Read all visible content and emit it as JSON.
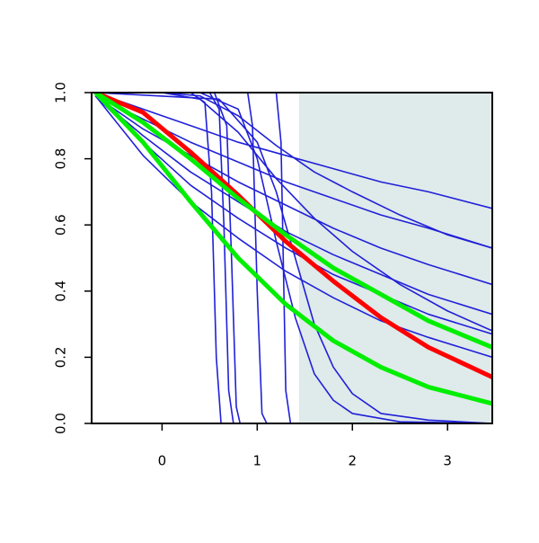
{
  "chart_data": {
    "type": "line",
    "xlim": [
      -0.74,
      3.47
    ],
    "ylim": [
      0,
      1
    ],
    "xticks": [
      0,
      1,
      2,
      3
    ],
    "yticks": [
      {
        "value": 0,
        "label": "0.0"
      },
      {
        "value": 0.2,
        "label": "0.2"
      },
      {
        "value": 0.4,
        "label": "0.4"
      },
      {
        "value": 0.6,
        "label": "0.6"
      },
      {
        "value": 0.8,
        "label": "0.8"
      },
      {
        "value": 1,
        "label": "1.0"
      }
    ],
    "shaded_range": [
      1.44,
      3.47
    ],
    "shade_color": "#dfeaea",
    "line_color": "#2020d8",
    "series": [
      {
        "x": [
          -0.7,
          -0.2,
          0.3,
          0.8,
          1.3,
          1.8,
          2.3,
          2.8,
          3.47
        ],
        "values": [
          1.0,
          0.95,
          0.9,
          0.85,
          0.81,
          0.77,
          0.73,
          0.7,
          0.65
        ]
      },
      {
        "x": [
          -0.7,
          -0.2,
          0.3,
          0.8,
          1.3,
          1.8,
          2.3,
          2.8,
          3.47
        ],
        "values": [
          0.99,
          0.92,
          0.85,
          0.79,
          0.73,
          0.68,
          0.63,
          0.59,
          0.53
        ]
      },
      {
        "x": [
          -0.7,
          -0.2,
          0.3,
          0.8,
          1.3,
          1.8,
          2.3,
          2.8,
          3.47
        ],
        "values": [
          0.99,
          0.89,
          0.81,
          0.73,
          0.66,
          0.59,
          0.53,
          0.48,
          0.42
        ]
      },
      {
        "x": [
          -0.7,
          -0.2,
          0.3,
          0.8,
          1.3,
          1.8,
          2.3,
          2.8,
          3.47
        ],
        "values": [
          0.99,
          0.87,
          0.76,
          0.67,
          0.58,
          0.51,
          0.45,
          0.39,
          0.33
        ]
      },
      {
        "x": [
          -0.7,
          -0.2,
          0.3,
          0.8,
          1.3,
          1.8,
          2.3,
          2.8,
          3.47
        ],
        "values": [
          0.99,
          0.85,
          0.72,
          0.62,
          0.53,
          0.45,
          0.39,
          0.33,
          0.27
        ]
      },
      {
        "x": [
          -0.7,
          -0.2,
          0.3,
          0.8,
          1.3,
          1.8,
          2.3,
          2.8,
          3.47
        ],
        "values": [
          0.99,
          0.81,
          0.67,
          0.56,
          0.46,
          0.38,
          0.31,
          0.26,
          0.2
        ]
      },
      {
        "x": [
          -0.7,
          0,
          0.4,
          0.8,
          1.2,
          1.6,
          2.0,
          2.5,
          3.0,
          3.47
        ],
        "values": [
          1,
          1,
          0.99,
          0.93,
          0.84,
          0.76,
          0.7,
          0.63,
          0.57,
          0.53
        ]
      },
      {
        "x": [
          -0.7,
          0,
          0.4,
          0.8,
          1.2,
          1.6,
          2.0,
          2.5,
          3.0,
          3.47
        ],
        "values": [
          1,
          1,
          0.98,
          0.88,
          0.74,
          0.62,
          0.52,
          0.42,
          0.34,
          0.28
        ]
      },
      {
        "x": [
          -0.7,
          0.3,
          0.45,
          0.52,
          0.57,
          0.62,
          3.47
        ],
        "values": [
          1,
          1,
          0.97,
          0.7,
          0.2,
          0,
          0
        ]
      },
      {
        "x": [
          -0.7,
          0.5,
          0.6,
          0.65,
          0.7,
          0.75,
          3.47
        ],
        "values": [
          1,
          1,
          0.95,
          0.6,
          0.1,
          0,
          0
        ]
      },
      {
        "x": [
          -0.7,
          0.55,
          0.68,
          0.73,
          0.78,
          0.82,
          3.47
        ],
        "values": [
          1,
          1,
          0.9,
          0.5,
          0.05,
          0,
          0
        ]
      },
      {
        "x": [
          -0.7,
          0.9,
          0.95,
          1.0,
          1.05,
          1.1,
          3.47
        ],
        "values": [
          1,
          1,
          0.9,
          0.4,
          0.03,
          0,
          0
        ]
      },
      {
        "x": [
          -0.7,
          1.2,
          1.25,
          1.3,
          1.35,
          3.47
        ],
        "values": [
          1,
          1,
          0.85,
          0.1,
          0,
          0
        ]
      },
      {
        "x": [
          -0.7,
          0.4,
          0.8,
          1.0,
          1.2,
          1.4,
          1.6,
          1.8,
          2.0,
          2.5,
          3.47
        ],
        "values": [
          1,
          1,
          0.95,
          0.8,
          0.55,
          0.32,
          0.15,
          0.07,
          0.03,
          0.005,
          0
        ]
      },
      {
        "x": [
          -0.7,
          0.6,
          1.0,
          1.2,
          1.4,
          1.6,
          1.8,
          2.0,
          2.3,
          2.8,
          3.47
        ],
        "values": [
          1,
          0.98,
          0.85,
          0.7,
          0.5,
          0.3,
          0.17,
          0.09,
          0.03,
          0.01,
          0
        ]
      },
      {
        "color": "#ff0000",
        "x": [
          -0.7,
          -0.2,
          0.3,
          0.8,
          1.3,
          1.8,
          2.3,
          2.8,
          3.47
        ],
        "values": [
          1.0,
          0.94,
          0.82,
          0.69,
          0.55,
          0.43,
          0.32,
          0.23,
          0.14
        ]
      },
      {
        "color": "#00ee00",
        "x": [
          -0.7,
          -0.2,
          0.3,
          0.8,
          1.3,
          1.8,
          2.3,
          2.8,
          3.47
        ],
        "values": [
          1.0,
          0.91,
          0.8,
          0.68,
          0.57,
          0.47,
          0.39,
          0.31,
          0.23
        ]
      },
      {
        "color": "#00ee00",
        "x": [
          -0.7,
          -0.2,
          0.3,
          0.8,
          1.3,
          1.8,
          2.3,
          2.8,
          3.47
        ],
        "values": [
          1.0,
          0.85,
          0.67,
          0.5,
          0.36,
          0.25,
          0.17,
          0.11,
          0.06
        ]
      }
    ]
  }
}
